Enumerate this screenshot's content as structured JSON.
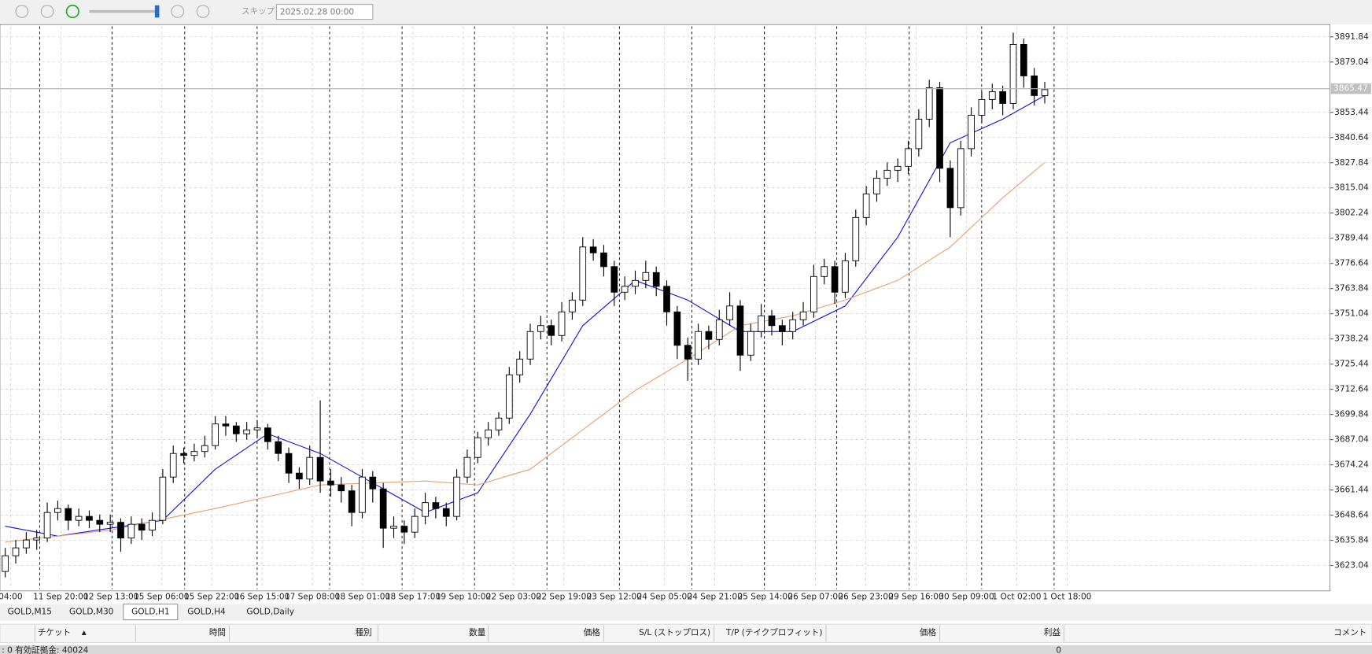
{
  "toolbar": {
    "skip": "スキップ",
    "date": "2025.02.28 00:00"
  },
  "chart_data": {
    "type": "candlestick",
    "ylim": [
      3611.0,
      3897.2
    ],
    "yticks": [
      3623.04,
      3635.84,
      3648.64,
      3661.44,
      3674.24,
      3687.04,
      3699.84,
      3712.64,
      3725.44,
      3738.24,
      3751.04,
      3763.84,
      3776.64,
      3789.44,
      3802.24,
      3815.04,
      3827.84,
      3840.64,
      3853.44,
      3879.04,
      3891.84
    ],
    "grid": true,
    "current_price": 3865.47,
    "up_color": "#ffffff",
    "down_color": "#000000",
    "x_labels": [
      "04:00",
      "11 Sep 20:00",
      "12 Sep 13:00",
      "15 Sep 06:00",
      "15 Sep 22:00",
      "16 Sep 15:00",
      "17 Sep 08:00",
      "18 Sep 01:00",
      "18 Sep 17:00",
      "19 Sep 10:00",
      "22 Sep 03:00",
      "22 Sep 19:00",
      "23 Sep 12:00",
      "24 Sep 05:00",
      "24 Sep 21:00",
      "25 Sep 14:00",
      "26 Sep 07:00",
      "26 Sep 23:00",
      "29 Sep 16:00",
      "30 Sep 09:00",
      "1 Oct 02:00",
      "1 Oct 18:00"
    ],
    "candles": [
      [
        3620,
        3632,
        3617,
        3628
      ],
      [
        3628,
        3636,
        3624,
        3632
      ],
      [
        3632,
        3640,
        3629,
        3636
      ],
      [
        3636,
        3641,
        3631,
        3637
      ],
      [
        3637,
        3655,
        3635,
        3650
      ],
      [
        3650,
        3656,
        3646,
        3652
      ],
      [
        3652,
        3654,
        3641,
        3646
      ],
      [
        3646,
        3652,
        3643,
        3648
      ],
      [
        3648,
        3651,
        3642,
        3646
      ],
      [
        3646,
        3649,
        3640,
        3644
      ],
      [
        3644,
        3649,
        3640,
        3645
      ],
      [
        3645,
        3647,
        3630,
        3637
      ],
      [
        3637,
        3648,
        3634,
        3644
      ],
      [
        3644,
        3647,
        3636,
        3641
      ],
      [
        3641,
        3650,
        3638,
        3646
      ],
      [
        3646,
        3672,
        3644,
        3668
      ],
      [
        3668,
        3684,
        3665,
        3680
      ],
      [
        3680,
        3683,
        3675,
        3679
      ],
      [
        3679,
        3685,
        3676,
        3681
      ],
      [
        3681,
        3689,
        3678,
        3684
      ],
      [
        3684,
        3699,
        3682,
        3695
      ],
      [
        3695,
        3699,
        3689,
        3694
      ],
      [
        3694,
        3696,
        3686,
        3690
      ],
      [
        3690,
        3696,
        3687,
        3692
      ],
      [
        3692,
        3697,
        3688,
        3693
      ],
      [
        3693,
        3695,
        3682,
        3686
      ],
      [
        3686,
        3689,
        3676,
        3680
      ],
      [
        3680,
        3683,
        3665,
        3670
      ],
      [
        3670,
        3673,
        3662,
        3667
      ],
      [
        3667,
        3684,
        3664,
        3678
      ],
      [
        3678,
        3707,
        3660,
        3666
      ],
      [
        3666,
        3672,
        3658,
        3664
      ],
      [
        3664,
        3668,
        3655,
        3661
      ],
      [
        3661,
        3664,
        3643,
        3650
      ],
      [
        3650,
        3672,
        3647,
        3668
      ],
      [
        3668,
        3671,
        3655,
        3662
      ],
      [
        3662,
        3665,
        3632,
        3642
      ],
      [
        3642,
        3648,
        3637,
        3643
      ],
      [
        3643,
        3646,
        3634,
        3640
      ],
      [
        3640,
        3652,
        3637,
        3648
      ],
      [
        3648,
        3660,
        3644,
        3655
      ],
      [
        3655,
        3658,
        3647,
        3652
      ],
      [
        3652,
        3655,
        3643,
        3648
      ],
      [
        3648,
        3672,
        3646,
        3668
      ],
      [
        3668,
        3682,
        3665,
        3678
      ],
      [
        3678,
        3691,
        3675,
        3688
      ],
      [
        3688,
        3696,
        3684,
        3692
      ],
      [
        3692,
        3701,
        3689,
        3698
      ],
      [
        3698,
        3724,
        3695,
        3720
      ],
      [
        3720,
        3732,
        3716,
        3728
      ],
      [
        3728,
        3746,
        3725,
        3742
      ],
      [
        3742,
        3750,
        3738,
        3745
      ],
      [
        3745,
        3748,
        3735,
        3740
      ],
      [
        3740,
        3757,
        3737,
        3752
      ],
      [
        3752,
        3762,
        3748,
        3758
      ],
      [
        3758,
        3790,
        3755,
        3785
      ],
      [
        3785,
        3789,
        3778,
        3782
      ],
      [
        3782,
        3786,
        3770,
        3775
      ],
      [
        3775,
        3778,
        3755,
        3762
      ],
      [
        3762,
        3770,
        3758,
        3765
      ],
      [
        3765,
        3773,
        3761,
        3768
      ],
      [
        3768,
        3778,
        3764,
        3772
      ],
      [
        3772,
        3775,
        3760,
        3765
      ],
      [
        3765,
        3768,
        3745,
        3752
      ],
      [
        3752,
        3755,
        3728,
        3735
      ],
      [
        3735,
        3739,
        3717,
        3728
      ],
      [
        3728,
        3746,
        3725,
        3742
      ],
      [
        3742,
        3745,
        3733,
        3738
      ],
      [
        3738,
        3753,
        3735,
        3748
      ],
      [
        3748,
        3762,
        3745,
        3755
      ],
      [
        3755,
        3758,
        3722,
        3730
      ],
      [
        3730,
        3746,
        3727,
        3742
      ],
      [
        3742,
        3756,
        3739,
        3750
      ],
      [
        3750,
        3753,
        3740,
        3745
      ],
      [
        3745,
        3748,
        3735,
        3742
      ],
      [
        3742,
        3752,
        3738,
        3748
      ],
      [
        3748,
        3757,
        3745,
        3752
      ],
      [
        3752,
        3776,
        3749,
        3770
      ],
      [
        3770,
        3779,
        3766,
        3775
      ],
      [
        3775,
        3778,
        3756,
        3762
      ],
      [
        3762,
        3782,
        3759,
        3778
      ],
      [
        3778,
        3804,
        3775,
        3800
      ],
      [
        3800,
        3816,
        3796,
        3812
      ],
      [
        3812,
        3824,
        3808,
        3820
      ],
      [
        3820,
        3828,
        3816,
        3824
      ],
      [
        3824,
        3830,
        3818,
        3826
      ],
      [
        3826,
        3839,
        3822,
        3835
      ],
      [
        3835,
        3855,
        3831,
        3850
      ],
      [
        3850,
        3870,
        3846,
        3866
      ],
      [
        3866,
        3869,
        3818,
        3825
      ],
      [
        3825,
        3829,
        3790,
        3805
      ],
      [
        3805,
        3839,
        3801,
        3835
      ],
      [
        3835,
        3856,
        3831,
        3852
      ],
      [
        3852,
        3864,
        3848,
        3860
      ],
      [
        3860,
        3868,
        3855,
        3864
      ],
      [
        3864,
        3867,
        3852,
        3858
      ],
      [
        3858,
        3894,
        3855,
        3888
      ],
      [
        3888,
        3891,
        3866,
        3872
      ],
      [
        3872,
        3876,
        3857,
        3862
      ],
      [
        3862,
        3869,
        3858,
        3865
      ]
    ],
    "series": [
      {
        "color": "#1010e0",
        "x": [
          0,
          5,
          10,
          15,
          20,
          25,
          30,
          35,
          40,
          45,
          50,
          55,
          60,
          65,
          70,
          75,
          80,
          85,
          90,
          95,
          99
        ],
        "values": [
          3643,
          3638,
          3642,
          3646,
          3672,
          3690,
          3680,
          3665,
          3650,
          3660,
          3700,
          3745,
          3768,
          3758,
          3742,
          3742,
          3755,
          3790,
          3838,
          3850,
          3862
        ]
      },
      {
        "color": "#e8a070",
        "x": [
          0,
          10,
          20,
          30,
          40,
          45,
          50,
          55,
          60,
          65,
          70,
          75,
          80,
          85,
          90,
          95,
          99
        ],
        "values": [
          3635,
          3641,
          3652,
          3664,
          3666,
          3664,
          3672,
          3692,
          3712,
          3728,
          3745,
          3750,
          3758,
          3768,
          3785,
          3810,
          3828
        ]
      }
    ]
  },
  "tabs": [
    "GOLD,M15",
    "GOLD,M30",
    "GOLD,H1",
    "GOLD,H4",
    "GOLD,Daily"
  ],
  "table": {
    "headers": [
      "チケット",
      "時間",
      "種別",
      "数量",
      "価格",
      "S/L (ストップロス)",
      "T/P (テイクプロフィット)",
      "価格",
      "利益",
      "コメント"
    ],
    "status": ": 0  有効証拠金: 40024",
    "profit": "0"
  }
}
